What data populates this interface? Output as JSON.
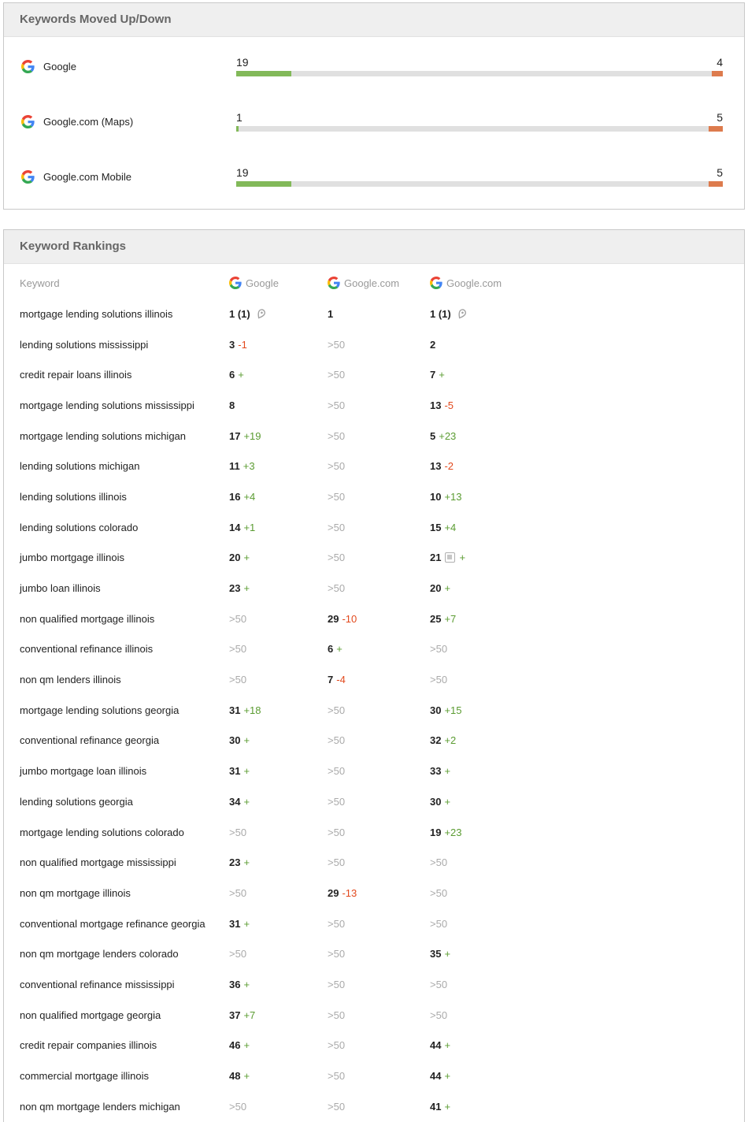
{
  "colors": {
    "bar_up_green": "#82b959",
    "bar_down_orange": "#dd7b4d",
    "bar_track_gray": "#e0e0e0",
    "change_up_green": "#5b9c32",
    "change_down_red": "#e2491d",
    "muted_gray": "#aaaaaa",
    "header_bg": "#efefef",
    "header_text": "#666666"
  },
  "moved_panel": {
    "title": "Keywords Moved Up/Down",
    "rows": [
      {
        "engine": "Google",
        "up": "19",
        "down": "4",
        "up_pct": "11.3%",
        "down_pct": "2.3%"
      },
      {
        "engine": "Google.com (Maps)",
        "up": "1",
        "down": "5",
        "up_pct": "0.5%",
        "down_pct": "2.9%"
      },
      {
        "engine": "Google.com Mobile",
        "up": "19",
        "down": "5",
        "up_pct": "11.3%",
        "down_pct": "2.9%"
      }
    ]
  },
  "rankings_panel": {
    "title": "Keyword Rankings",
    "columns": [
      "Keyword",
      "Google",
      "Google.com",
      "Google.com"
    ],
    "rows": [
      {
        "keyword": "mortgage lending solutions illinois",
        "cells": [
          {
            "rank": "1 (1)",
            "pin": true
          },
          {
            "rank": "1"
          },
          {
            "rank": "1 (1)",
            "pin": true
          }
        ]
      },
      {
        "keyword": "lending solutions mississippi",
        "cells": [
          {
            "rank": "3",
            "change": "-1"
          },
          {
            "rank": ">50",
            "muted": true
          },
          {
            "rank": "2"
          }
        ]
      },
      {
        "keyword": "credit repair loans illinois",
        "cells": [
          {
            "rank": "6",
            "change": "+"
          },
          {
            "rank": ">50",
            "muted": true
          },
          {
            "rank": "7",
            "change": "+"
          }
        ]
      },
      {
        "keyword": "mortgage lending solutions mississippi",
        "cells": [
          {
            "rank": "8"
          },
          {
            "rank": ">50",
            "muted": true
          },
          {
            "rank": "13",
            "change": "-5"
          }
        ]
      },
      {
        "keyword": "mortgage lending solutions michigan",
        "cells": [
          {
            "rank": "17",
            "change": "+19"
          },
          {
            "rank": ">50",
            "muted": true
          },
          {
            "rank": "5",
            "change": "+23"
          }
        ]
      },
      {
        "keyword": "lending solutions michigan",
        "cells": [
          {
            "rank": "11",
            "change": "+3"
          },
          {
            "rank": ">50",
            "muted": true
          },
          {
            "rank": "13",
            "change": "-2"
          }
        ]
      },
      {
        "keyword": "lending solutions illinois",
        "cells": [
          {
            "rank": "16",
            "change": "+4"
          },
          {
            "rank": ">50",
            "muted": true
          },
          {
            "rank": "10",
            "change": "+13"
          }
        ]
      },
      {
        "keyword": "lending solutions colorado",
        "cells": [
          {
            "rank": "14",
            "change": "+1"
          },
          {
            "rank": ">50",
            "muted": true
          },
          {
            "rank": "15",
            "change": "+4"
          }
        ]
      },
      {
        "keyword": "jumbo mortgage illinois",
        "cells": [
          {
            "rank": "20",
            "change": "+"
          },
          {
            "rank": ">50",
            "muted": true
          },
          {
            "rank": "21",
            "img": true,
            "change": "+"
          }
        ]
      },
      {
        "keyword": "jumbo loan illinois",
        "cells": [
          {
            "rank": "23",
            "change": "+"
          },
          {
            "rank": ">50",
            "muted": true
          },
          {
            "rank": "20",
            "change": "+"
          }
        ]
      },
      {
        "keyword": "non qualified mortgage illinois",
        "cells": [
          {
            "rank": ">50",
            "muted": true
          },
          {
            "rank": "29",
            "change": "-10"
          },
          {
            "rank": "25",
            "change": "+7"
          }
        ]
      },
      {
        "keyword": "conventional refinance illinois",
        "cells": [
          {
            "rank": ">50",
            "muted": true
          },
          {
            "rank": "6",
            "change": "+"
          },
          {
            "rank": ">50",
            "muted": true
          }
        ]
      },
      {
        "keyword": "non qm lenders illinois",
        "cells": [
          {
            "rank": ">50",
            "muted": true
          },
          {
            "rank": "7",
            "change": "-4"
          },
          {
            "rank": ">50",
            "muted": true
          }
        ]
      },
      {
        "keyword": "mortgage lending solutions georgia",
        "cells": [
          {
            "rank": "31",
            "change": "+18"
          },
          {
            "rank": ">50",
            "muted": true
          },
          {
            "rank": "30",
            "change": "+15"
          }
        ]
      },
      {
        "keyword": "conventional refinance georgia",
        "cells": [
          {
            "rank": "30",
            "change": "+"
          },
          {
            "rank": ">50",
            "muted": true
          },
          {
            "rank": "32",
            "change": "+2"
          }
        ]
      },
      {
        "keyword": "jumbo mortgage loan illinois",
        "cells": [
          {
            "rank": "31",
            "change": "+"
          },
          {
            "rank": ">50",
            "muted": true
          },
          {
            "rank": "33",
            "change": "+"
          }
        ]
      },
      {
        "keyword": "lending solutions georgia",
        "cells": [
          {
            "rank": "34",
            "change": "+"
          },
          {
            "rank": ">50",
            "muted": true
          },
          {
            "rank": "30",
            "change": "+"
          }
        ]
      },
      {
        "keyword": "mortgage lending solutions colorado",
        "cells": [
          {
            "rank": ">50",
            "muted": true
          },
          {
            "rank": ">50",
            "muted": true
          },
          {
            "rank": "19",
            "change": "+23"
          }
        ]
      },
      {
        "keyword": "non qualified mortgage mississippi",
        "cells": [
          {
            "rank": "23",
            "change": "+"
          },
          {
            "rank": ">50",
            "muted": true
          },
          {
            "rank": ">50",
            "muted": true
          }
        ]
      },
      {
        "keyword": "non qm mortgage illinois",
        "cells": [
          {
            "rank": ">50",
            "muted": true
          },
          {
            "rank": "29",
            "change": "-13"
          },
          {
            "rank": ">50",
            "muted": true
          }
        ]
      },
      {
        "keyword": "conventional mortgage refinance georgia",
        "cells": [
          {
            "rank": "31",
            "change": "+"
          },
          {
            "rank": ">50",
            "muted": true
          },
          {
            "rank": ">50",
            "muted": true
          }
        ]
      },
      {
        "keyword": "non qm mortgage lenders colorado",
        "cells": [
          {
            "rank": ">50",
            "muted": true
          },
          {
            "rank": ">50",
            "muted": true
          },
          {
            "rank": "35",
            "change": "+"
          }
        ]
      },
      {
        "keyword": "conventional refinance mississippi",
        "cells": [
          {
            "rank": "36",
            "change": "+"
          },
          {
            "rank": ">50",
            "muted": true
          },
          {
            "rank": ">50",
            "muted": true
          }
        ]
      },
      {
        "keyword": "non qualified mortgage georgia",
        "cells": [
          {
            "rank": "37",
            "change": "+7"
          },
          {
            "rank": ">50",
            "muted": true
          },
          {
            "rank": ">50",
            "muted": true
          }
        ]
      },
      {
        "keyword": "credit repair companies illinois",
        "cells": [
          {
            "rank": "46",
            "change": "+"
          },
          {
            "rank": ">50",
            "muted": true
          },
          {
            "rank": "44",
            "change": "+"
          }
        ]
      },
      {
        "keyword": "commercial mortgage illinois",
        "cells": [
          {
            "rank": "48",
            "change": "+"
          },
          {
            "rank": ">50",
            "muted": true
          },
          {
            "rank": "44",
            "change": "+"
          }
        ]
      },
      {
        "keyword": "non qm mortgage lenders michigan",
        "cells": [
          {
            "rank": ">50",
            "muted": true
          },
          {
            "rank": ">50",
            "muted": true
          },
          {
            "rank": "41",
            "change": "+"
          }
        ]
      }
    ]
  }
}
